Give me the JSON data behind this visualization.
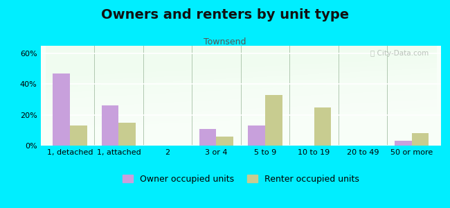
{
  "title": "Owners and renters by unit type",
  "subtitle": "Townsend",
  "categories": [
    "1, detached",
    "1, attached",
    "2",
    "3 or 4",
    "5 to 9",
    "10 to 19",
    "20 to 49",
    "50 or more"
  ],
  "owner_values": [
    47,
    26,
    0,
    11,
    13,
    0,
    0,
    3
  ],
  "renter_values": [
    13,
    15,
    0,
    6,
    33,
    25,
    0,
    8
  ],
  "owner_color": "#c8a0dc",
  "renter_color": "#c8cc90",
  "background_outer": "#00eeff",
  "ylim": [
    0,
    65
  ],
  "yticks": [
    0,
    20,
    40,
    60
  ],
  "ytick_labels": [
    "0%",
    "20%",
    "40%",
    "60%"
  ],
  "bar_width": 0.35,
  "legend_owner": "Owner occupied units",
  "legend_renter": "Renter occupied units",
  "title_fontsize": 14,
  "subtitle_fontsize": 9,
  "tick_fontsize": 8,
  "legend_fontsize": 9
}
